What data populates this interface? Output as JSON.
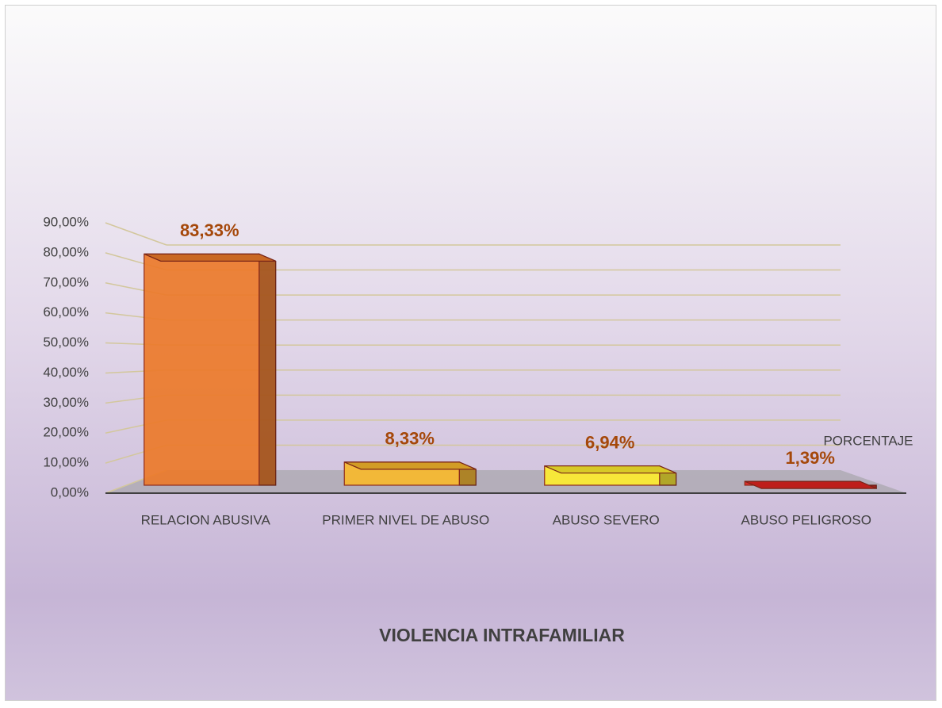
{
  "chart_data": {
    "type": "bar3d",
    "title": "VIOLENCIA INTRAFAMILIAR",
    "categories": [
      "RELACION ABUSIVA",
      "PRIMER NIVEL DE ABUSO",
      "ABUSO SEVERO",
      "ABUSO PELIGROSO"
    ],
    "series": [
      {
        "name": "PORCENTAJE",
        "colors": [
          "#ec7a2a",
          "#f7b82c",
          "#fdec2e",
          "#e0231f"
        ],
        "values": [
          83.33,
          8.33,
          6.94,
          1.39
        ],
        "value_labels": [
          "83,33%",
          "8,33%",
          "6,94%",
          "1,39%"
        ]
      }
    ],
    "ylim": [
      0,
      90
    ],
    "yticks": [
      {
        "value": 0,
        "label": "0,00%"
      },
      {
        "value": 10,
        "label": "10,00%"
      },
      {
        "value": 20,
        "label": "20,00%"
      },
      {
        "value": 30,
        "label": "30,00%"
      },
      {
        "value": 40,
        "label": "40,00%"
      },
      {
        "value": 50,
        "label": "50,00%"
      },
      {
        "value": 60,
        "label": "60,00%"
      },
      {
        "value": 70,
        "label": "70,00%"
      },
      {
        "value": 80,
        "label": "80,00%"
      },
      {
        "value": 90,
        "label": "90,00%"
      }
    ],
    "grid": true
  }
}
